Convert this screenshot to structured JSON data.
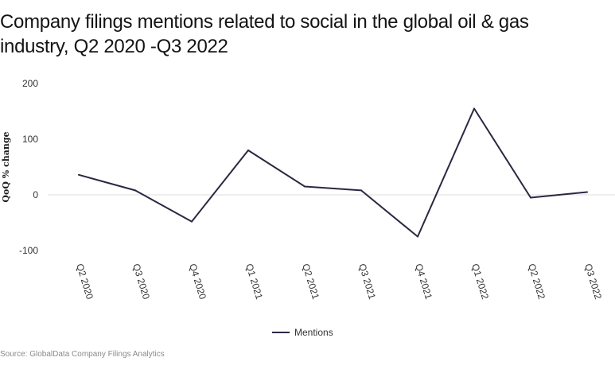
{
  "title": "Company filings mentions related to social in the global oil & gas industry, Q2 2020 -Q3 2022",
  "source": "Source: GlobalData Company Filings Analytics",
  "colors": {
    "line": "#2b2742",
    "zero_line": "#dddddd"
  },
  "chart_data": {
    "type": "line",
    "ylabel": "QoQ % change",
    "xlabel": "",
    "categories": [
      "Q2 2020",
      "Q3 2020",
      "Q4 2020",
      "Q1 2021",
      "Q2 2021",
      "Q3 2021",
      "Q4 2021",
      "Q1 2022",
      "Q2 2022",
      "Q3 2022"
    ],
    "ylim": [
      -100,
      200
    ],
    "yticks": [
      200,
      100,
      0,
      -100
    ],
    "grid": false,
    "legend_position": "bottom",
    "series": [
      {
        "name": "Mentions",
        "values": [
          36,
          8,
          -48,
          80,
          15,
          8,
          -75,
          155,
          -5,
          5
        ]
      }
    ]
  }
}
